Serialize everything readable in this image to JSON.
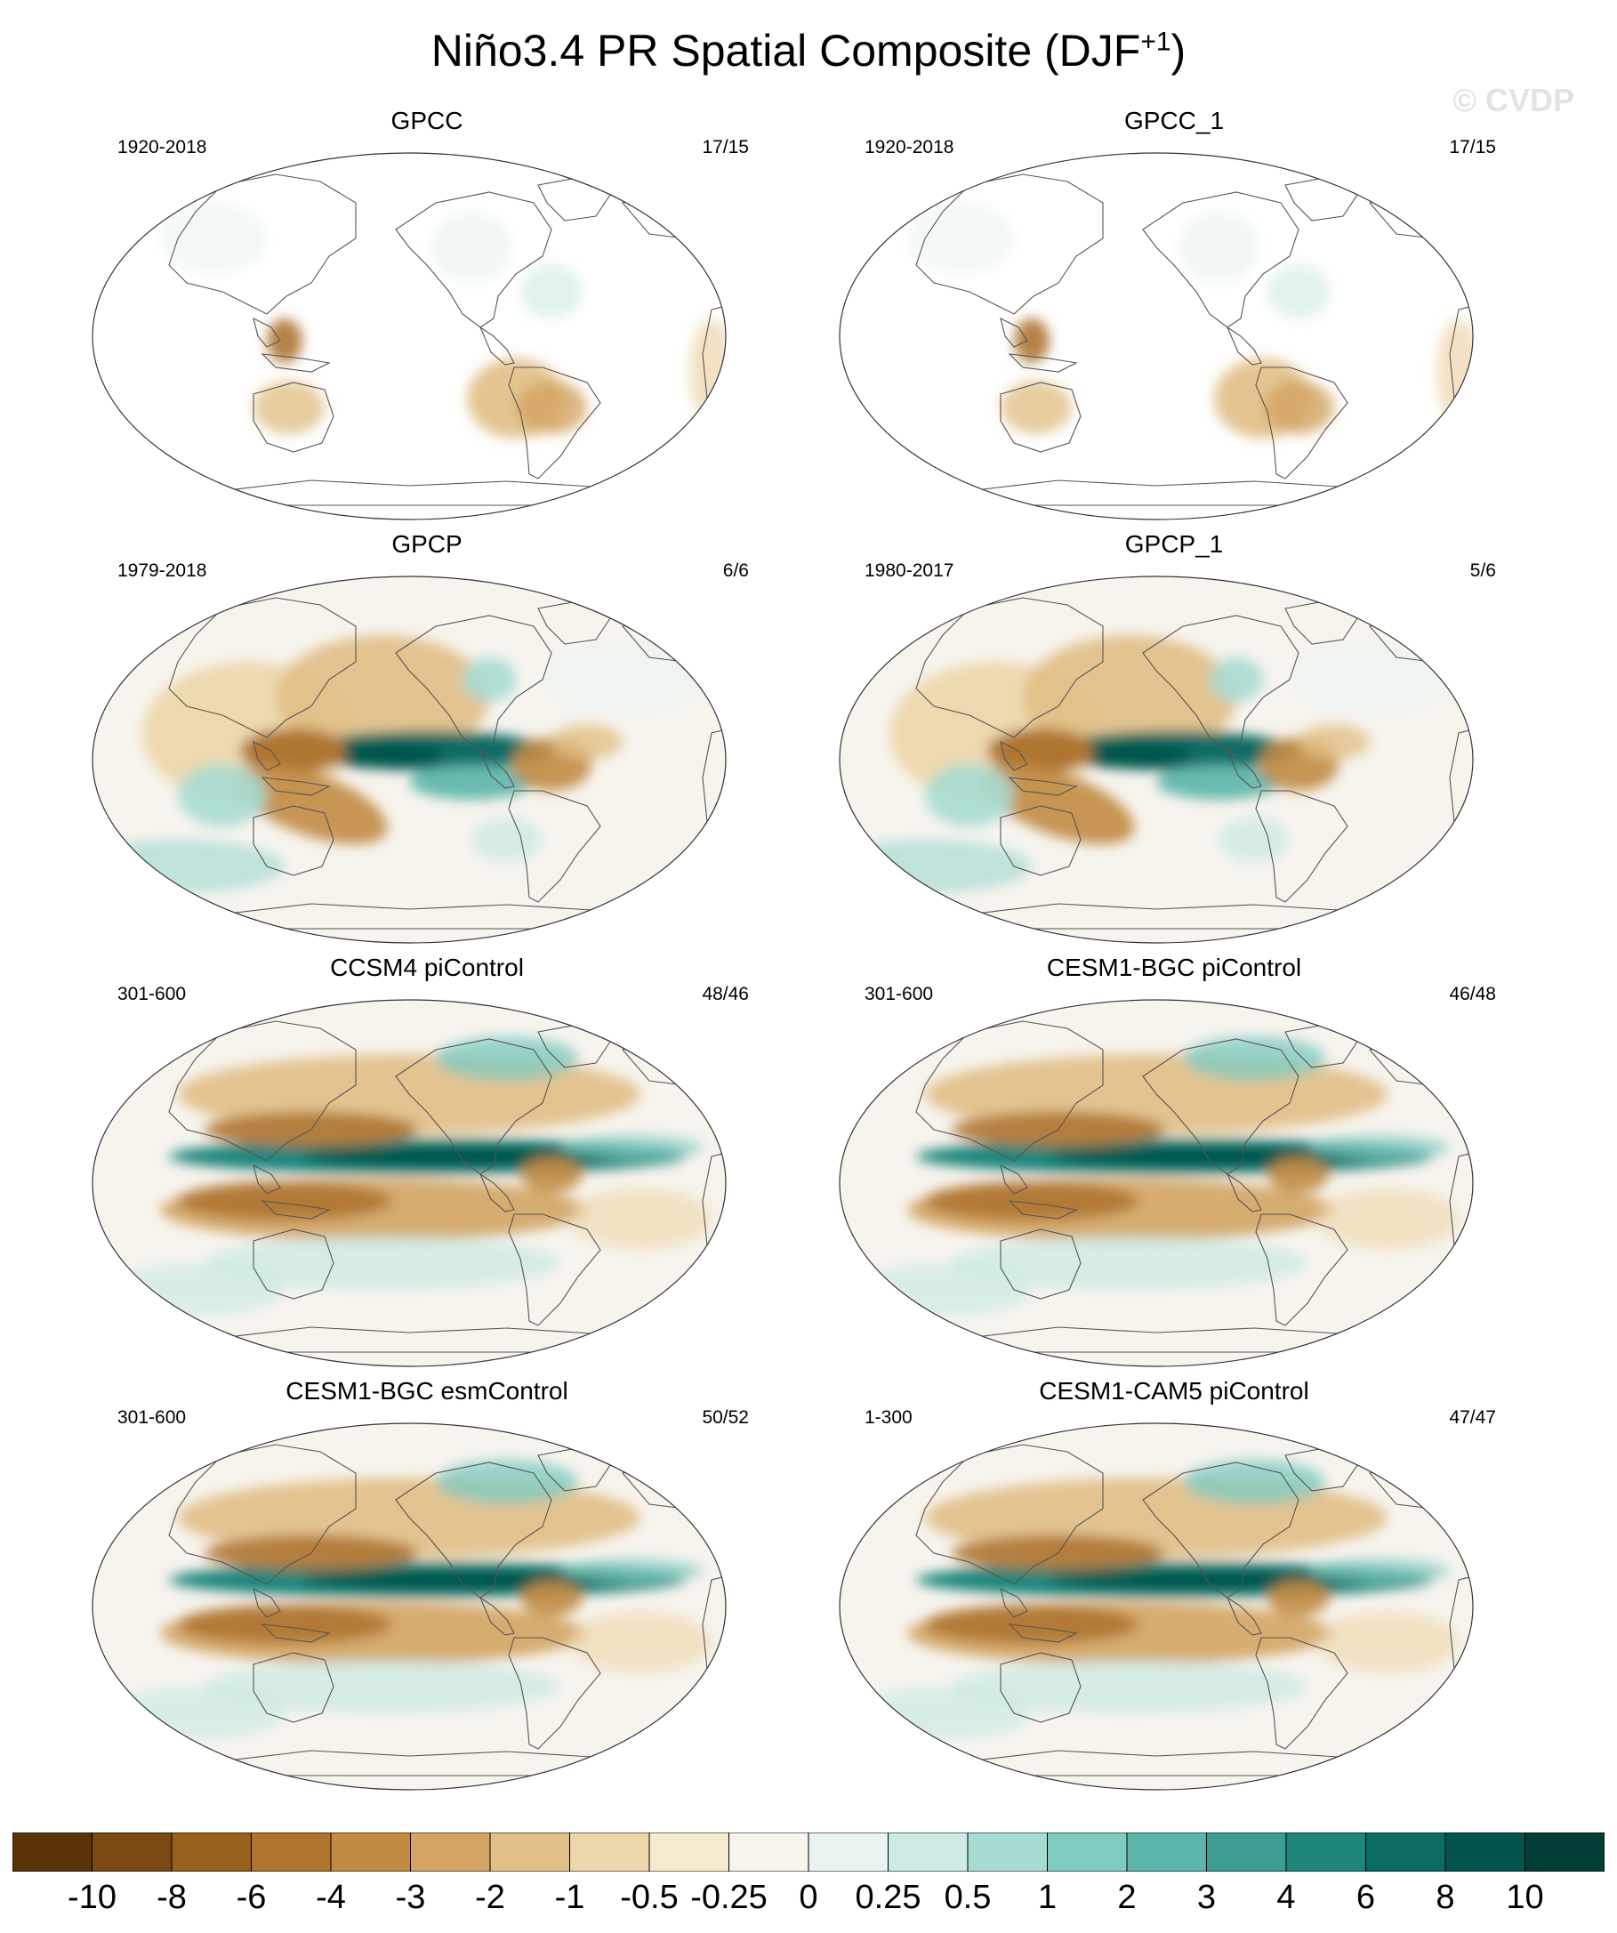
{
  "title_main": "Niño3.4 PR Spatial Composite (DJF",
  "title_sup": "+1",
  "title_end": ")",
  "watermark": "© CVDP",
  "panels": [
    {
      "title": "GPCC",
      "left": "1920-2018",
      "right": "17/15",
      "pattern": "land"
    },
    {
      "title": "GPCC_1",
      "left": "1920-2018",
      "right": "17/15",
      "pattern": "land"
    },
    {
      "title": "GPCP",
      "left": "1979-2018",
      "right": "6/6",
      "pattern": "obs"
    },
    {
      "title": "GPCP_1",
      "left": "1980-2017",
      "right": "5/6",
      "pattern": "obs"
    },
    {
      "title": "CCSM4 piControl",
      "left": "301-600",
      "right": "48/46",
      "pattern": "model"
    },
    {
      "title": "CESM1-BGC piControl",
      "left": "301-600",
      "right": "46/48",
      "pattern": "model"
    },
    {
      "title": "CESM1-BGC esmControl",
      "left": "301-600",
      "right": "50/52",
      "pattern": "model"
    },
    {
      "title": "CESM1-CAM5 piControl",
      "left": "1-300",
      "right": "47/47",
      "pattern": "model"
    }
  ],
  "colorbar": {
    "labels": [
      "-10",
      "-8",
      "-6",
      "-4",
      "-3",
      "-2",
      "-1",
      "-0.5",
      "-0.25",
      "0",
      "0.25",
      "0.5",
      "1",
      "2",
      "3",
      "4",
      "6",
      "8",
      "10"
    ],
    "colors": [
      "#5a3408",
      "#7a4a12",
      "#97601d",
      "#ae7430",
      "#c28b44",
      "#d3a463",
      "#e1bf86",
      "#edd6a9",
      "#f6ebcd",
      "#f7f4ee",
      "#e9f3f1",
      "#cdeae4",
      "#a7dcd3",
      "#80cbc0",
      "#5bb5a9",
      "#3c9d92",
      "#1e857b",
      "#0a6c63",
      "#03544c",
      "#023d36"
    ]
  }
}
